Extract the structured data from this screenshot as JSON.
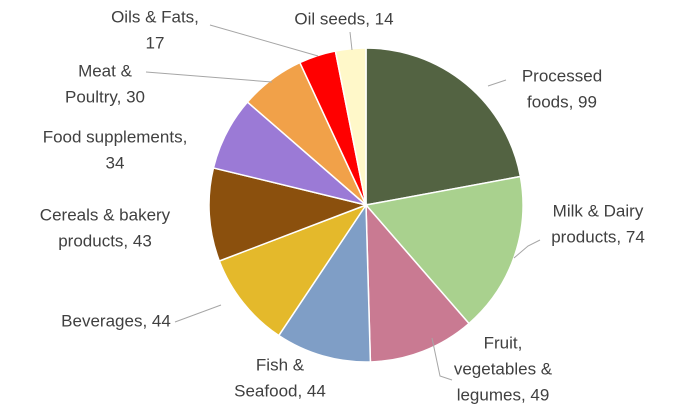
{
  "chart_data": {
    "type": "pie",
    "values": [
      99,
      74,
      49,
      44,
      44,
      43,
      34,
      30,
      17,
      14
    ],
    "value_labels": [
      [
        "Processed",
        "foods, 99"
      ],
      [
        "Milk & Dairy",
        "products, 74"
      ],
      [
        "Fruit,",
        "vegetables &",
        "legumes, 49"
      ],
      [
        "Fish &",
        "Seafood, 44"
      ],
      [
        "Beverages, 44"
      ],
      [
        "Cereals & bakery",
        "products, 43"
      ],
      [
        "Food supplements,",
        "34"
      ],
      [
        "Meat &",
        "Poultry, 30"
      ],
      [
        "Oils & Fats,",
        "17"
      ],
      [
        "Oil seeds, 14"
      ]
    ],
    "colors": [
      "#536342",
      "#a9d18e",
      "#c97a92",
      "#7f9ec6",
      "#e4b92b",
      "#8b500d",
      "#9b7ad6",
      "#f1a149",
      "#ff0000",
      "#fff8c9"
    ]
  }
}
